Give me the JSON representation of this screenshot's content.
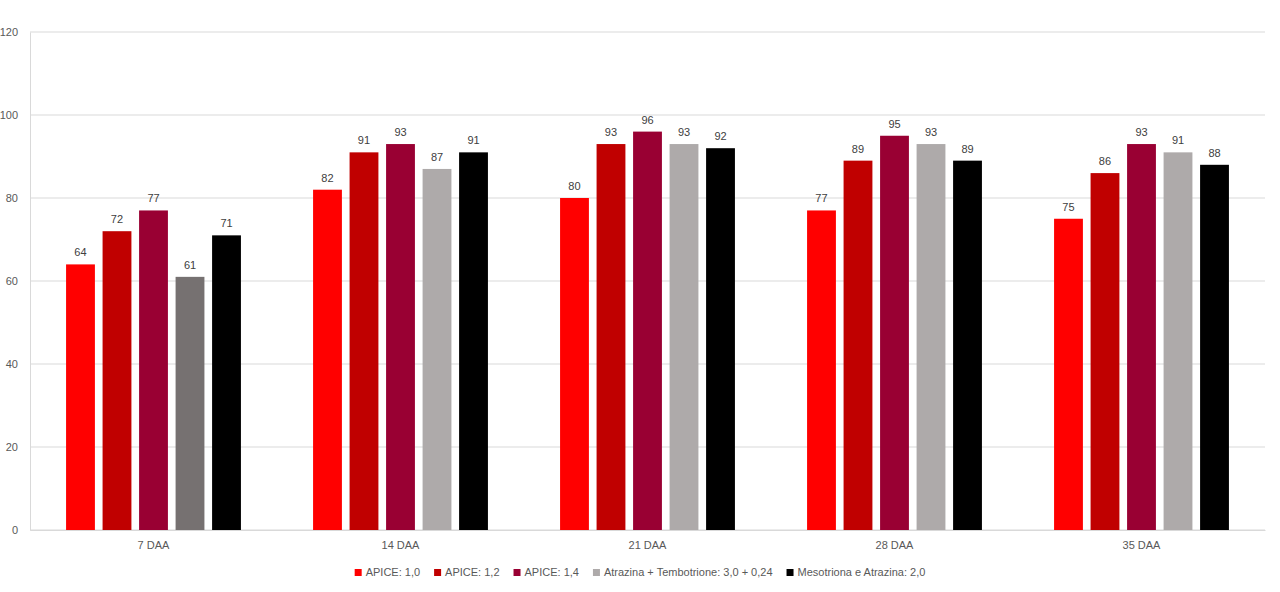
{
  "chart_data": {
    "type": "bar",
    "categories": [
      "7 DAA",
      "14 DAA",
      "21 DAA",
      "28 DAA",
      "35 DAA"
    ],
    "series": [
      {
        "name": "APICE: 1,0",
        "color": "#FF0000",
        "values": [
          64,
          82,
          80,
          77,
          75
        ]
      },
      {
        "name": "APICE: 1,2",
        "color": "#C00000",
        "values": [
          72,
          91,
          93,
          89,
          86
        ]
      },
      {
        "name": "APICE: 1,4",
        "color": "#990033",
        "values": [
          77,
          93,
          96,
          95,
          93
        ]
      },
      {
        "name": "Atrazina + Tembotrione: 3,0 + 0,24",
        "color": "#AEAAAA",
        "colors": [
          "#767171",
          "#AEAAAA",
          "#AEAAAA",
          "#AEAAAA",
          "#AEAAAA"
        ],
        "values": [
          61,
          87,
          93,
          93,
          91
        ]
      },
      {
        "name": "Mesotriona e Atrazina: 2,0",
        "color": "#000000",
        "values": [
          71,
          91,
          92,
          89,
          88
        ]
      }
    ],
    "ylim": [
      0,
      120
    ],
    "yticks": [
      0,
      20,
      40,
      60,
      80,
      100,
      120
    ],
    "grid": true,
    "data_labels": true,
    "legend": "bottom"
  }
}
